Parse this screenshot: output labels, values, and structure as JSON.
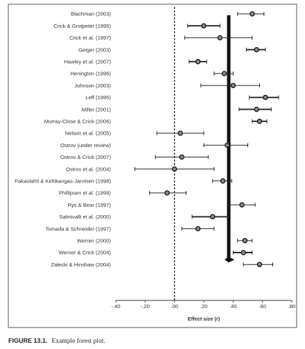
{
  "chart_data": {
    "type": "forest",
    "xlabel": "Effect size (r)",
    "xlim": [
      -0.4,
      0.8
    ],
    "x_ticks": [
      -0.4,
      -0.2,
      0.0,
      0.2,
      0.4,
      0.6,
      0.8
    ],
    "x_tick_labels": [
      "-.40",
      "-.20",
      ".00",
      ".20",
      ".40",
      ".60",
      ".80"
    ],
    "reference_line": 0.0,
    "summary": {
      "estimate": 0.37,
      "lower": 0.36,
      "upper": 0.39
    },
    "studies": [
      {
        "label": "Blachman (2003)",
        "estimate": 0.53,
        "lower": 0.43,
        "upper": 0.61,
        "bold_ci": false
      },
      {
        "label": "Crick & Grotpeter (1995)",
        "estimate": 0.2,
        "lower": 0.09,
        "upper": 0.31,
        "bold_ci": true
      },
      {
        "label": "Crick et al. (1997)",
        "estimate": 0.31,
        "lower": 0.07,
        "upper": 0.53,
        "bold_ci": false
      },
      {
        "label": "Geiger (2003)",
        "estimate": 0.56,
        "lower": 0.49,
        "upper": 0.62,
        "bold_ci": true
      },
      {
        "label": "Hawley et al. (2007)",
        "estimate": 0.16,
        "lower": 0.1,
        "upper": 0.22,
        "bold_ci": true
      },
      {
        "label": "Henington (1996)",
        "estimate": 0.34,
        "lower": 0.27,
        "upper": 0.4,
        "bold_ci": false
      },
      {
        "label": "Johnson (2003)",
        "estimate": 0.4,
        "lower": 0.18,
        "upper": 0.58,
        "bold_ci": false
      },
      {
        "label": "Leff (1995)",
        "estimate": 0.62,
        "lower": 0.51,
        "upper": 0.71,
        "bold_ci": true
      },
      {
        "label": "Miller (2001)",
        "estimate": 0.56,
        "lower": 0.44,
        "upper": 0.66,
        "bold_ci": true
      },
      {
        "label": "Murray-Close & Crick (2006)",
        "estimate": 0.58,
        "lower": 0.53,
        "upper": 0.63,
        "bold_ci": true
      },
      {
        "label": "Nelson et al. (2005)",
        "estimate": 0.04,
        "lower": -0.12,
        "upper": 0.2,
        "bold_ci": false
      },
      {
        "label": "Ostrov (under review)",
        "estimate": 0.36,
        "lower": 0.2,
        "upper": 0.5,
        "bold_ci": false
      },
      {
        "label": "Ostrov & Crick (2007)",
        "estimate": 0.05,
        "lower": -0.13,
        "upper": 0.23,
        "bold_ci": false
      },
      {
        "label": "Ostrov et al. (2004)",
        "estimate": 0.0,
        "lower": -0.27,
        "upper": 0.27,
        "bold_ci": false
      },
      {
        "label": "Pakaslahti & Keltikangas-Järvinen (1998)",
        "estimate": 0.33,
        "lower": 0.26,
        "upper": 0.39,
        "bold_ci": false
      },
      {
        "label": "Phillipsen et al. (1999)",
        "estimate": -0.05,
        "lower": -0.17,
        "upper": 0.08,
        "bold_ci": false
      },
      {
        "label": "Rys & Bear (1997)",
        "estimate": 0.46,
        "lower": 0.36,
        "upper": 0.55,
        "bold_ci": false
      },
      {
        "label": "Salmivalli et al. (2000)",
        "estimate": 0.26,
        "lower": 0.12,
        "upper": 0.38,
        "bold_ci": true
      },
      {
        "label": "Tomada & Schneider (1997)",
        "estimate": 0.16,
        "lower": 0.05,
        "upper": 0.27,
        "bold_ci": false
      },
      {
        "label": "Werner (2000)",
        "estimate": 0.48,
        "lower": 0.43,
        "upper": 0.53,
        "bold_ci": false
      },
      {
        "label": "Werner & Crick (2004)",
        "estimate": 0.47,
        "lower": 0.4,
        "upper": 0.53,
        "bold_ci": true
      },
      {
        "label": "Zalecki & Hinshaw (2004)",
        "estimate": 0.58,
        "lower": 0.47,
        "upper": 0.67,
        "bold_ci": false
      }
    ]
  },
  "caption": {
    "figure_number": "FIGURE 13.1.",
    "text": "Example forest plot."
  }
}
